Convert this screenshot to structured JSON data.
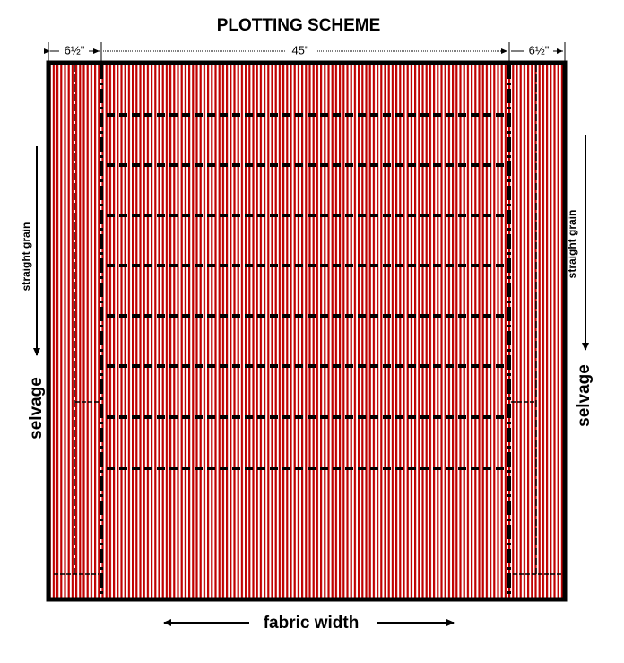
{
  "title": "PLOTTING  SCHEME",
  "dimensions": [
    "6½\"",
    "45\"",
    "6½\""
  ],
  "left": {
    "grain": "straight  grain",
    "edge": "selvage"
  },
  "right": {
    "grain": "straight  grain",
    "edge": "selvage"
  },
  "bottom": "fabric width"
}
